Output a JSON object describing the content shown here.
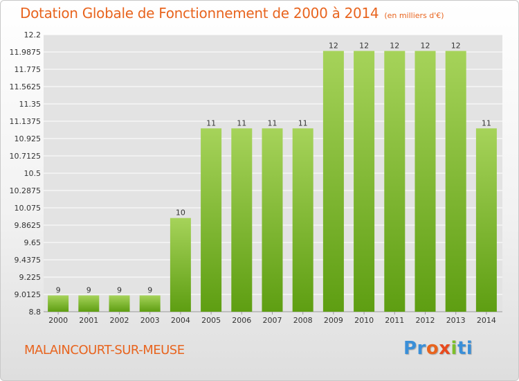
{
  "title": "Dotation Globale de Fonctionnement de 2000 à 2014",
  "subtitle": "(en milliers d'€)",
  "commune": "MALAINCOURT-SUR-MEUSE",
  "logo": {
    "parts": [
      "Pr",
      "o",
      "x",
      "i",
      "ti"
    ],
    "colors": [
      "#3a8fd8",
      "#e8641e",
      "#e84a1e",
      "#7cbf2a",
      "#3a8fd8"
    ]
  },
  "colors": {
    "bar_light": "#a6d35a",
    "bar_dark": "#5e9e12",
    "accent": "#e8641e",
    "grid": "#ffffff"
  },
  "chart_data": {
    "type": "bar",
    "title": "Dotation Globale de Fonctionnement de 2000 à 2014",
    "subtitle": "(en milliers d'€)",
    "xlabel": "",
    "ylabel": "",
    "categories": [
      "2000",
      "2001",
      "2002",
      "2003",
      "2004",
      "2005",
      "2006",
      "2007",
      "2008",
      "2009",
      "2010",
      "2011",
      "2012",
      "2013",
      "2014"
    ],
    "values": [
      9,
      9,
      9,
      9,
      10,
      11,
      11,
      11,
      11,
      12,
      12,
      12,
      12,
      12,
      11
    ],
    "labels": [
      "9",
      "9",
      "9",
      "9",
      "10",
      "11",
      "11",
      "11",
      "11",
      "12",
      "12",
      "12",
      "12",
      "12",
      "11"
    ],
    "bar_tops": [
      9.0,
      9.0,
      9.0,
      9.0,
      9.95,
      11.05,
      11.05,
      11.05,
      11.05,
      12.0,
      12.0,
      12.0,
      12.0,
      12.0,
      11.05
    ],
    "yticks": [
      "8.8",
      "9.0125",
      "9.225",
      "9.4375",
      "9.65",
      "9.8625",
      "10.075",
      "10.2875",
      "10.5",
      "10.7125",
      "10.925",
      "11.1375",
      "11.35",
      "11.5625",
      "11.775",
      "11.9875",
      "12.2"
    ],
    "ylim": [
      8.8,
      12.2
    ],
    "grid": true,
    "legend": "none"
  }
}
